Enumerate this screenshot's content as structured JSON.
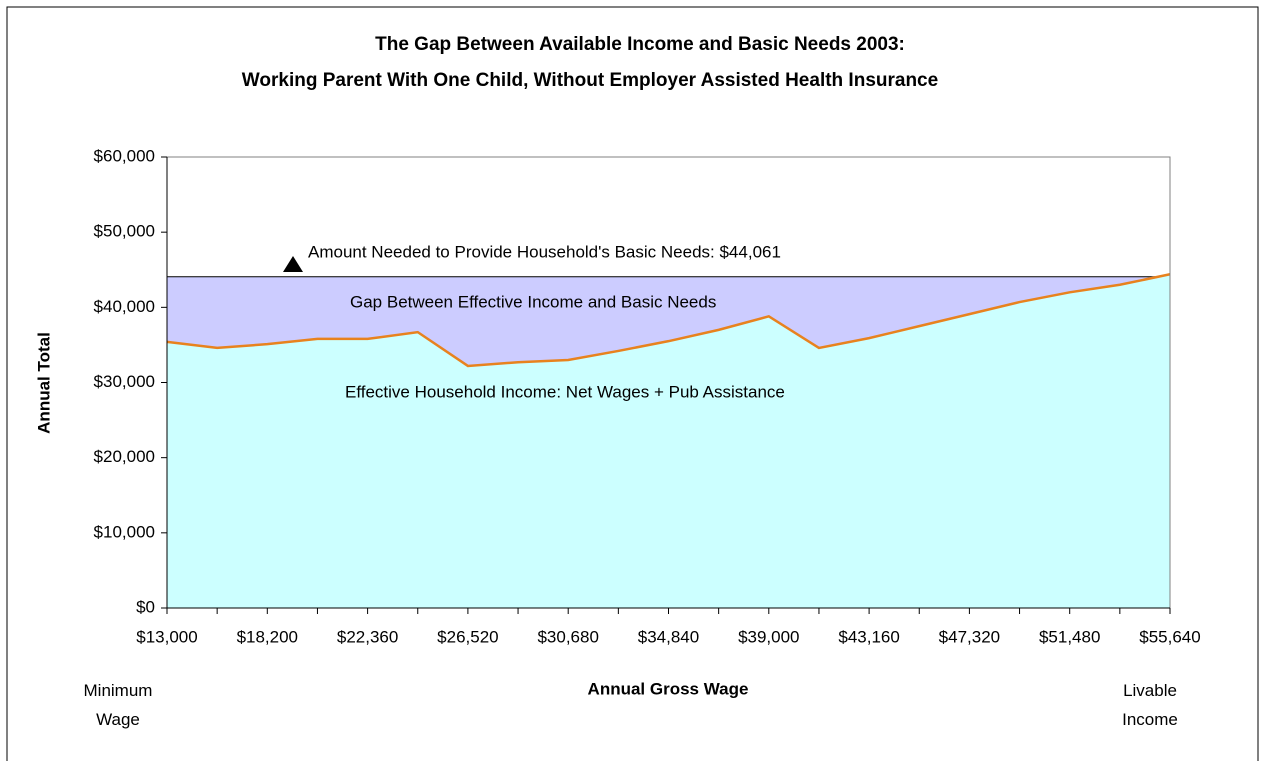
{
  "chart_data": {
    "type": "area",
    "title": "The Gap Between Available Income and Basic Needs 2003:",
    "subtitle": "Working Parent With One Child, Without Employer Assisted Health Insurance",
    "x_label": "Annual Gross Wage",
    "y_label": "Annual Total",
    "categories": [
      "$13,000",
      null,
      "$18,200",
      null,
      "$22,360",
      null,
      "$26,520",
      null,
      "$30,680",
      null,
      "$34,840",
      null,
      "$39,000",
      null,
      "$43,160",
      null,
      "$47,320",
      null,
      "$51,480",
      null,
      "$55,640"
    ],
    "series": [
      {
        "name": "Amount Needed to Provide Household's Basic Needs",
        "color": "#ccccff",
        "line_color": "#000000",
        "values": [
          44061,
          44061,
          44061,
          44061,
          44061,
          44061,
          44061,
          44061,
          44061,
          44061,
          44061,
          44061,
          44061,
          44061,
          44061,
          44061,
          44061,
          44061,
          44061,
          44061,
          44061
        ]
      },
      {
        "name": "Effective Household Income",
        "color": "#ccffff",
        "line_color": "#e8821e",
        "values": [
          35400,
          34600,
          35100,
          35800,
          35800,
          36700,
          32200,
          32700,
          33000,
          34200,
          35500,
          37000,
          38800,
          34600,
          35900,
          37500,
          39100,
          40700,
          42000,
          43000,
          44400
        ]
      }
    ],
    "annotations": [
      "Amount Needed to Provide Household's Basic Needs: $44,061",
      "Gap Between Effective Income and Basic Needs",
      "Effective Household Income: Net Wages + Pub Assistance",
      "Minimum Wage",
      "Livable Income"
    ],
    "ylim": [
      0,
      60000
    ],
    "yticks": [
      {
        "value": 0,
        "label": "$0"
      },
      {
        "value": 10000,
        "label": "$10,000"
      },
      {
        "value": 20000,
        "label": "$20,000"
      },
      {
        "value": 30000,
        "label": "$30,000"
      },
      {
        "value": 40000,
        "label": "$40,000"
      },
      {
        "value": 50000,
        "label": "$50,000"
      },
      {
        "value": 60000,
        "label": "$60,000"
      }
    ],
    "grid": false
  }
}
